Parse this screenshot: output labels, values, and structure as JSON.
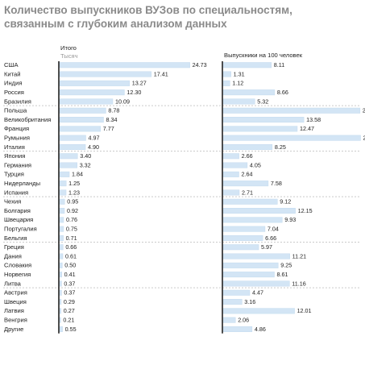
{
  "title_line1": "Количество выпускников ВУЗов по специальностям,",
  "title_line2": "связанным с глубоким анализом данных",
  "bar_color": "#d3e5f5",
  "bar_stroke": "#c4daee",
  "axis_color": "#222222",
  "separator_color": "#aaaaaa",
  "chart_data": [
    {
      "type": "bar",
      "orientation": "horizontal",
      "header": "Итого",
      "subheader": "Тысяч",
      "categories": [
        "США",
        "Китай",
        "Индия",
        "Россия",
        "Бразилия",
        "Польша",
        "Великобритания",
        "Франция",
        "Румыния",
        "Италия",
        "Япония",
        "Германия",
        "Турция",
        "Нидерланды",
        "Испания",
        "Чехия",
        "Болгария",
        "Швецария",
        "Португалия",
        "Бельгия",
        "Греция",
        "Дания",
        "Словакия",
        "Норвегия",
        "Литва",
        "Австрия",
        "Швеция",
        "Латвия",
        "Венгрия",
        "Другие"
      ],
      "values": [
        24.73,
        17.41,
        13.27,
        12.3,
        10.09,
        8.78,
        8.34,
        7.77,
        4.97,
        4.9,
        3.4,
        3.32,
        1.84,
        1.25,
        1.23,
        0.95,
        0.92,
        0.76,
        0.75,
        0.71,
        0.66,
        0.61,
        0.5,
        0.41,
        0.37,
        0.37,
        0.29,
        0.27,
        0.21,
        0.55
      ],
      "value_labels": [
        "24.73",
        "17.41",
        "13.27",
        "12.30",
        "10.09",
        "8.78",
        "8.34",
        "7.77",
        "4.97",
        "4.90",
        "3.40",
        "3.32",
        "1.84",
        "1.25",
        "1.23",
        "0.95",
        "0.92",
        "0.76",
        "0.75",
        "0.71",
        "0.66",
        "0.61",
        "0.50",
        "0.41",
        "0.37",
        "0.37",
        "0.29",
        "0.27",
        "0.21",
        "0.55"
      ],
      "xlim": [
        0,
        25.7
      ],
      "groups": [
        5,
        5,
        5,
        5,
        5,
        5
      ]
    },
    {
      "type": "bar",
      "orientation": "horizontal",
      "header": "Выпускники на 100 человек",
      "categories": [
        "США",
        "Китай",
        "Индия",
        "Россия",
        "Бразилия",
        "Польша",
        "Великобритания",
        "Франция",
        "Румыния",
        "Италия",
        "Япония",
        "Германия",
        "Турция",
        "Нидерланды",
        "Испания",
        "Чехия",
        "Болгария",
        "Швецария",
        "Португалия",
        "Бельгия",
        "Греция",
        "Дания",
        "Словакия",
        "Норвегия",
        "Литва",
        "Австрия",
        "Швеция",
        "Латвия",
        "Венгрия",
        "Другие"
      ],
      "values": [
        8.11,
        1.31,
        1.12,
        8.66,
        5.32,
        23.03,
        13.58,
        12.47,
        23.12,
        8.25,
        2.66,
        4.05,
        2.64,
        7.58,
        2.71,
        9.12,
        12.15,
        9.93,
        7.04,
        6.66,
        5.97,
        11.21,
        9.25,
        8.61,
        11.16,
        4.47,
        3.16,
        12.01,
        2.06,
        4.86
      ],
      "value_labels": [
        "8.11",
        "1.31",
        "1.12",
        "8.66",
        "5.32",
        "23.03",
        "13.58",
        "12.47",
        "23.12",
        "8.25",
        "2.66",
        "4.05",
        "2.64",
        "7.58",
        "2.71",
        "9.12",
        "12.15",
        "9.93",
        "7.04",
        "6.66",
        "5.97",
        "11.21",
        "9.25",
        "8.61",
        "11.16",
        "4.47",
        "3.16",
        "12.01",
        "2.06",
        "4.86"
      ],
      "xlim": [
        0,
        24.0
      ],
      "groups": [
        5,
        5,
        5,
        5,
        5,
        5
      ]
    }
  ]
}
